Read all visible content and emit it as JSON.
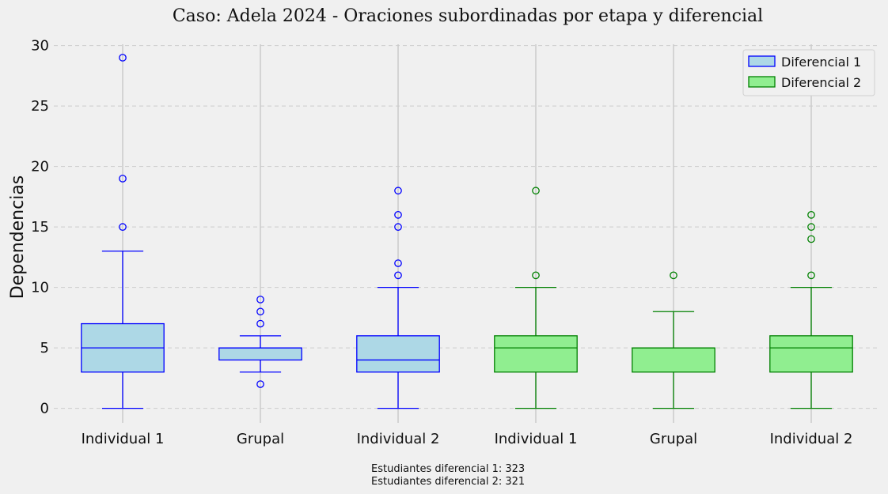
{
  "chart_data": {
    "type": "box",
    "title": "Caso: Adela 2024 - Oraciones subordinadas por etapa y diferencial",
    "ylabel": "Dependencias",
    "xlabel": "",
    "ylim": [
      -1.2,
      30.5
    ],
    "yticks": [
      0,
      5,
      10,
      15,
      20,
      25,
      30
    ],
    "grid": true,
    "legend_position": "top-right",
    "categories": [
      "Individual 1",
      "Grupal",
      "Individual 2",
      "Individual 1",
      "Grupal",
      "Individual 2"
    ],
    "series": [
      {
        "name": "Diferencial 1",
        "fill": "#add8e6",
        "stroke": "#0000ff",
        "boxes": [
          {
            "category": "Individual 1",
            "whisker_low": 0,
            "q1": 3,
            "median": 5,
            "q3": 7,
            "whisker_high": 13,
            "outliers": [
              15,
              19,
              29
            ]
          },
          {
            "category": "Grupal",
            "whisker_low": 3,
            "q1": 4,
            "median": 5,
            "q3": 5,
            "whisker_high": 6,
            "outliers": [
              2,
              7,
              8,
              9
            ]
          },
          {
            "category": "Individual 2",
            "whisker_low": 0,
            "q1": 3,
            "median": 4,
            "q3": 6,
            "whisker_high": 10,
            "outliers": [
              11,
              12,
              15,
              16,
              18
            ]
          }
        ]
      },
      {
        "name": "Diferencial 2",
        "fill": "#90ee90",
        "stroke": "#008000",
        "boxes": [
          {
            "category": "Individual 1",
            "whisker_low": 0,
            "q1": 3,
            "median": 5,
            "q3": 6,
            "whisker_high": 10,
            "outliers": [
              11,
              18
            ]
          },
          {
            "category": "Grupal",
            "whisker_low": 0,
            "q1": 3,
            "median": 5,
            "q3": 5,
            "whisker_high": 8,
            "outliers": [
              11
            ]
          },
          {
            "category": "Individual 2",
            "whisker_low": 0,
            "q1": 3,
            "median": 5,
            "q3": 6,
            "whisker_high": 10,
            "outliers": [
              11,
              14,
              15,
              16
            ]
          }
        ]
      }
    ],
    "footnotes": [
      "Estudiantes diferencial 1: 323",
      "Estudiantes diferencial 2: 321"
    ]
  }
}
